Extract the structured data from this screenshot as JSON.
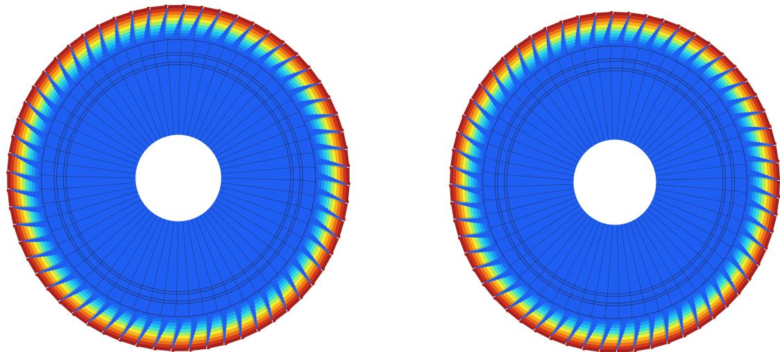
{
  "figure": {
    "background": "#ffffff",
    "wheel_count": 2,
    "wheels": [
      {
        "name": "left-bladed-disk",
        "blade_count": 60,
        "hub_hole": true
      },
      {
        "name": "right-bladed-disk",
        "blade_count": 60,
        "hub_hole": true
      }
    ],
    "colormap": [
      "#1e5bf0",
      "#1a74f2",
      "#1e98f4",
      "#21c2f0",
      "#3fe2d2",
      "#9ef06a",
      "#f2ee2c",
      "#f9b01a",
      "#f07014",
      "#d2351a",
      "#a8201c"
    ],
    "base_color": "#1f5ef2",
    "line_color": "#222233"
  }
}
